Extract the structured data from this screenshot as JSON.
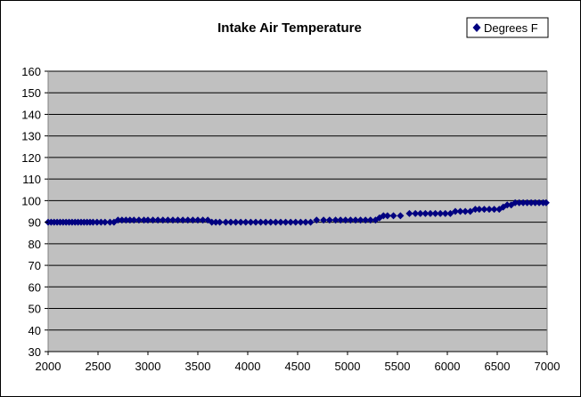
{
  "chart_data": {
    "type": "scatter",
    "title": "Intake Air Temperature",
    "xlabel": "",
    "ylabel": "",
    "xlim": [
      2000,
      7000
    ],
    "ylim": [
      30,
      160
    ],
    "x_ticks": [
      2000,
      2500,
      3000,
      3500,
      4000,
      4500,
      5000,
      5500,
      6000,
      6500,
      7000
    ],
    "y_ticks": [
      30,
      40,
      50,
      60,
      70,
      80,
      90,
      100,
      110,
      120,
      130,
      140,
      150,
      160
    ],
    "grid": "horizontal",
    "legend_position": "top-right",
    "series": [
      {
        "name": "Degrees F",
        "color": "#000080",
        "marker": "diamond",
        "points": [
          [
            2000,
            90
          ],
          [
            2030,
            90
          ],
          [
            2060,
            90
          ],
          [
            2090,
            90
          ],
          [
            2120,
            90
          ],
          [
            2150,
            90
          ],
          [
            2180,
            90
          ],
          [
            2210,
            90
          ],
          [
            2240,
            90
          ],
          [
            2270,
            90
          ],
          [
            2300,
            90
          ],
          [
            2330,
            90
          ],
          [
            2360,
            90
          ],
          [
            2390,
            90
          ],
          [
            2420,
            90
          ],
          [
            2450,
            90
          ],
          [
            2490,
            90
          ],
          [
            2530,
            90
          ],
          [
            2570,
            90
          ],
          [
            2620,
            90
          ],
          [
            2660,
            90
          ],
          [
            2700,
            91
          ],
          [
            2740,
            91
          ],
          [
            2780,
            91
          ],
          [
            2820,
            91
          ],
          [
            2860,
            91
          ],
          [
            2910,
            91
          ],
          [
            2960,
            91
          ],
          [
            3000,
            91
          ],
          [
            3050,
            91
          ],
          [
            3100,
            91
          ],
          [
            3150,
            91
          ],
          [
            3200,
            91
          ],
          [
            3250,
            91
          ],
          [
            3300,
            91
          ],
          [
            3350,
            91
          ],
          [
            3400,
            91
          ],
          [
            3450,
            91
          ],
          [
            3500,
            91
          ],
          [
            3550,
            91
          ],
          [
            3600,
            91
          ],
          [
            3640,
            90
          ],
          [
            3680,
            90
          ],
          [
            3720,
            90
          ],
          [
            3780,
            90
          ],
          [
            3830,
            90
          ],
          [
            3880,
            90
          ],
          [
            3930,
            90
          ],
          [
            3980,
            90
          ],
          [
            4030,
            90
          ],
          [
            4080,
            90
          ],
          [
            4130,
            90
          ],
          [
            4180,
            90
          ],
          [
            4230,
            90
          ],
          [
            4280,
            90
          ],
          [
            4330,
            90
          ],
          [
            4380,
            90
          ],
          [
            4430,
            90
          ],
          [
            4480,
            90
          ],
          [
            4530,
            90
          ],
          [
            4580,
            90
          ],
          [
            4630,
            90
          ],
          [
            4690,
            91
          ],
          [
            4760,
            91
          ],
          [
            4820,
            91
          ],
          [
            4880,
            91
          ],
          [
            4930,
            91
          ],
          [
            4980,
            91
          ],
          [
            5030,
            91
          ],
          [
            5080,
            91
          ],
          [
            5130,
            91
          ],
          [
            5180,
            91
          ],
          [
            5230,
            91
          ],
          [
            5280,
            91
          ],
          [
            5320,
            92
          ],
          [
            5360,
            93
          ],
          [
            5400,
            93
          ],
          [
            5460,
            93
          ],
          [
            5530,
            93
          ],
          [
            5620,
            94
          ],
          [
            5680,
            94
          ],
          [
            5730,
            94
          ],
          [
            5780,
            94
          ],
          [
            5830,
            94
          ],
          [
            5880,
            94
          ],
          [
            5930,
            94
          ],
          [
            5980,
            94
          ],
          [
            6030,
            94
          ],
          [
            6080,
            95
          ],
          [
            6130,
            95
          ],
          [
            6180,
            95
          ],
          [
            6230,
            95
          ],
          [
            6280,
            96
          ],
          [
            6320,
            96
          ],
          [
            6370,
            96
          ],
          [
            6420,
            96
          ],
          [
            6470,
            96
          ],
          [
            6520,
            96
          ],
          [
            6560,
            97
          ],
          [
            6600,
            98
          ],
          [
            6640,
            98
          ],
          [
            6680,
            99
          ],
          [
            6720,
            99
          ],
          [
            6760,
            99
          ],
          [
            6800,
            99
          ],
          [
            6840,
            99
          ],
          [
            6880,
            99
          ],
          [
            6920,
            99
          ],
          [
            6960,
            99
          ],
          [
            6990,
            99
          ]
        ]
      }
    ]
  }
}
